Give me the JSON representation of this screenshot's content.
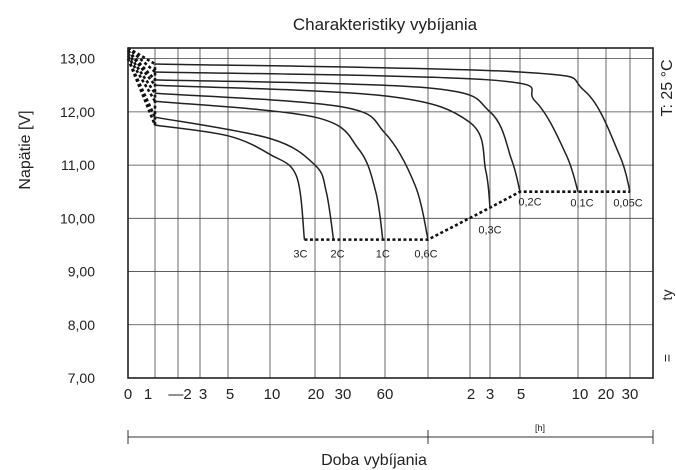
{
  "chart_data": {
    "type": "line",
    "title": "Charakteristiky vybíjania",
    "xlabel": "Doba vybíjania",
    "xlabel_unit": "[h]",
    "ylabel": "Napätie [V]",
    "temperature_label": "T: 25 °C",
    "right_side_labels": [
      "ty",
      "="
    ],
    "ylim": [
      7.0,
      13.2
    ],
    "yticks": [
      "13,00",
      "12,00",
      "11,00",
      "10,00",
      "9,00",
      "8,00",
      "7,00"
    ],
    "x_scale": "logarithmic",
    "xticks_minutes": [
      "0",
      "1",
      "—2",
      "3",
      "5",
      "10",
      "20",
      "30",
      "60"
    ],
    "xticks_hours": [
      "2",
      "3",
      "5",
      "10",
      "20",
      "30"
    ],
    "grid": true,
    "series": [
      {
        "name": "3C",
        "end_voltage": 9.6,
        "points": [
          [
            0,
            13.0
          ],
          [
            1,
            11.75
          ],
          [
            5,
            11.55
          ],
          [
            10,
            11.2
          ],
          [
            15,
            10.8
          ],
          [
            17,
            9.6
          ]
        ]
      },
      {
        "name": "2C",
        "end_voltage": 9.6,
        "points": [
          [
            0,
            13.0
          ],
          [
            1,
            11.9
          ],
          [
            10,
            11.5
          ],
          [
            20,
            11.0
          ],
          [
            24,
            10.5
          ],
          [
            27,
            9.6
          ]
        ]
      },
      {
        "name": "1C",
        "end_voltage": 9.6,
        "points": [
          [
            0,
            13.05
          ],
          [
            1,
            12.2
          ],
          [
            20,
            11.9
          ],
          [
            40,
            11.3
          ],
          [
            52,
            10.5
          ],
          [
            58,
            9.6
          ]
        ]
      },
      {
        "name": "0,6C",
        "end_voltage": 9.6,
        "points": [
          [
            0,
            13.1
          ],
          [
            1,
            12.35
          ],
          [
            30,
            12.1
          ],
          [
            60,
            11.6
          ],
          [
            80,
            10.6
          ],
          [
            90,
            9.6
          ]
        ]
      },
      {
        "name": "0,3C",
        "end_voltage": 10.2,
        "points": [
          [
            0,
            13.15
          ],
          [
            1,
            12.5
          ],
          [
            60,
            12.3
          ],
          [
            120,
            11.8
          ],
          [
            165,
            10.9
          ],
          [
            180,
            10.2
          ]
        ]
      },
      {
        "name": "0,2C",
        "end_voltage": 10.5,
        "points": [
          [
            0,
            13.15
          ],
          [
            1,
            12.6
          ],
          [
            90,
            12.45
          ],
          [
            180,
            12.0
          ],
          [
            260,
            11.1
          ],
          [
            300,
            10.5
          ]
        ]
      },
      {
        "name": "0,1C",
        "end_voltage": 10.5,
        "points": [
          [
            0,
            13.2
          ],
          [
            1,
            12.75
          ],
          [
            180,
            12.6
          ],
          [
            360,
            12.2
          ],
          [
            520,
            11.2
          ],
          [
            600,
            10.5
          ]
        ]
      },
      {
        "name": "0,05C",
        "end_voltage": 10.5,
        "points": [
          [
            0,
            13.2
          ],
          [
            1,
            12.9
          ],
          [
            300,
            12.75
          ],
          [
            700,
            12.4
          ],
          [
            1500,
            11.2
          ],
          [
            1800,
            10.5
          ]
        ]
      }
    ]
  }
}
